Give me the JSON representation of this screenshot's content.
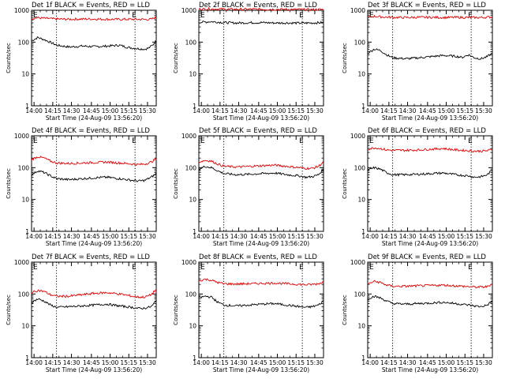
{
  "page": {
    "x_ticks": [
      "14:00",
      "14:15",
      "14:30",
      "14:45",
      "15:00",
      "15:15",
      "15:30"
    ],
    "y_ticks": [
      "1",
      "10",
      "100",
      "1000"
    ],
    "ylabel": "Counts/sec",
    "xlabel": "Start Time (24-Aug-09 13:56:20)",
    "marker_left": "E",
    "marker_right": "E",
    "colors": {
      "events": "#000000",
      "lld": "#e00000"
    }
  },
  "chart_data": [
    {
      "type": "line",
      "title": "Det 1f  BLACK = Events, RED = LLD",
      "ylim": [
        1,
        1000
      ],
      "yscale": "log",
      "xlim_minutes_from_start": [
        0,
        99
      ],
      "series": [
        {
          "name": "Events",
          "color": "#000000",
          "x": [
            0,
            5,
            10,
            20,
            30,
            40,
            50,
            60,
            70,
            75,
            80,
            85,
            90,
            93,
            96,
            99
          ],
          "y": [
            110,
            140,
            120,
            80,
            70,
            75,
            72,
            75,
            80,
            70,
            65,
            62,
            60,
            65,
            80,
            110
          ]
        },
        {
          "name": "LLD",
          "color": "#e00000",
          "x": [
            0,
            5,
            10,
            20,
            30,
            40,
            50,
            60,
            70,
            80,
            90,
            93,
            96,
            99
          ],
          "y": [
            550,
            580,
            560,
            530,
            520,
            530,
            530,
            520,
            520,
            520,
            520,
            510,
            540,
            600
          ]
        }
      ],
      "events": [
        {
          "tick": "14:00"
        }
      ]
    },
    {
      "type": "line",
      "title": "Det 2f  BLACK = Events, RED = LLD",
      "ylim": [
        1,
        1000
      ],
      "yscale": "log",
      "series": [
        {
          "name": "Events",
          "color": "#000000",
          "x": [
            0,
            10,
            20,
            30,
            40,
            50,
            60,
            70,
            80,
            90,
            99
          ],
          "y": [
            420,
            440,
            410,
            400,
            405,
            410,
            400,
            400,
            395,
            400,
            410
          ]
        },
        {
          "name": "LLD",
          "color": "#e00000",
          "x": [
            0,
            10,
            20,
            30,
            40,
            50,
            60,
            70,
            80,
            90,
            99
          ],
          "y": [
            1100,
            1100,
            1080,
            1070,
            1080,
            1070,
            1070,
            1060,
            1060,
            1050,
            1060
          ]
        }
      ]
    },
    {
      "type": "line",
      "title": "Det 3f  BLACK = Events, RED = LLD",
      "ylim": [
        1,
        1000
      ],
      "yscale": "log",
      "series": [
        {
          "name": "Events",
          "color": "#000000",
          "x": [
            0,
            5,
            10,
            15,
            20,
            30,
            40,
            50,
            60,
            70,
            75,
            80,
            85,
            90,
            95,
            99
          ],
          "y": [
            45,
            60,
            55,
            40,
            32,
            30,
            32,
            35,
            38,
            36,
            33,
            40,
            32,
            30,
            35,
            45
          ]
        },
        {
          "name": "LLD",
          "color": "#e00000",
          "x": [
            0,
            5,
            10,
            20,
            30,
            40,
            50,
            60,
            70,
            80,
            90,
            99
          ],
          "y": [
            600,
            650,
            620,
            600,
            590,
            600,
            600,
            590,
            600,
            590,
            590,
            620
          ]
        }
      ]
    },
    {
      "type": "line",
      "title": "Det 4f  BLACK = Events, RED = LLD",
      "ylim": [
        1,
        1000
      ],
      "yscale": "log",
      "series": [
        {
          "name": "Events",
          "color": "#000000",
          "x": [
            0,
            5,
            10,
            15,
            20,
            30,
            40,
            50,
            60,
            70,
            80,
            85,
            90,
            95,
            99
          ],
          "y": [
            60,
            80,
            70,
            55,
            45,
            42,
            45,
            48,
            50,
            45,
            40,
            38,
            40,
            50,
            65
          ]
        },
        {
          "name": "LLD",
          "color": "#e00000",
          "x": [
            0,
            5,
            10,
            15,
            20,
            30,
            40,
            50,
            60,
            70,
            80,
            85,
            90,
            95,
            99
          ],
          "y": [
            180,
            220,
            200,
            160,
            140,
            135,
            140,
            145,
            150,
            140,
            130,
            125,
            130,
            150,
            190
          ]
        }
      ]
    },
    {
      "type": "line",
      "title": "Det 5f  BLACK = Events, RED = LLD",
      "ylim": [
        1,
        1000
      ],
      "yscale": "log",
      "series": [
        {
          "name": "Events",
          "color": "#000000",
          "x": [
            0,
            5,
            10,
            15,
            20,
            30,
            40,
            50,
            60,
            70,
            80,
            85,
            90,
            95,
            99
          ],
          "y": [
            90,
            110,
            100,
            80,
            65,
            60,
            62,
            65,
            68,
            60,
            55,
            50,
            52,
            60,
            90
          ]
        },
        {
          "name": "LLD",
          "color": "#e00000",
          "x": [
            0,
            5,
            10,
            15,
            20,
            30,
            40,
            50,
            60,
            70,
            80,
            85,
            90,
            95,
            99
          ],
          "y": [
            150,
            170,
            160,
            130,
            110,
            105,
            110,
            115,
            120,
            110,
            100,
            95,
            95,
            110,
            150
          ]
        }
      ]
    },
    {
      "type": "line",
      "title": "Det 6f  BLACK = Events, RED = LLD",
      "ylim": [
        1,
        1000
      ],
      "yscale": "log",
      "series": [
        {
          "name": "Events",
          "color": "#000000",
          "x": [
            0,
            5,
            10,
            15,
            20,
            30,
            40,
            50,
            60,
            70,
            80,
            85,
            90,
            95,
            99
          ],
          "y": [
            80,
            100,
            90,
            70,
            60,
            60,
            62,
            65,
            68,
            60,
            55,
            50,
            52,
            60,
            85
          ]
        },
        {
          "name": "LLD",
          "color": "#e00000",
          "x": [
            0,
            5,
            10,
            15,
            20,
            30,
            40,
            50,
            60,
            70,
            80,
            85,
            90,
            95,
            99
          ],
          "y": [
            380,
            420,
            400,
            360,
            350,
            350,
            360,
            380,
            400,
            360,
            340,
            330,
            330,
            340,
            380
          ]
        }
      ]
    },
    {
      "type": "line",
      "title": "Det 7f  BLACK = Events, RED = LLD",
      "ylim": [
        1,
        1000
      ],
      "yscale": "log",
      "series": [
        {
          "name": "Events",
          "color": "#000000",
          "x": [
            0,
            5,
            10,
            15,
            20,
            30,
            40,
            50,
            60,
            70,
            80,
            85,
            90,
            95,
            99
          ],
          "y": [
            55,
            70,
            60,
            45,
            38,
            40,
            42,
            45,
            48,
            42,
            38,
            35,
            36,
            40,
            60
          ]
        },
        {
          "name": "LLD",
          "color": "#e00000",
          "x": [
            0,
            5,
            10,
            15,
            20,
            30,
            40,
            50,
            60,
            70,
            80,
            85,
            90,
            95,
            99
          ],
          "y": [
            110,
            130,
            120,
            95,
            85,
            85,
            95,
            105,
            110,
            100,
            85,
            80,
            80,
            95,
            140
          ]
        }
      ]
    },
    {
      "type": "line",
      "title": "Det 8f  BLACK = Events, RED = LLD",
      "ylim": [
        1,
        1000
      ],
      "yscale": "log",
      "series": [
        {
          "name": "Events",
          "color": "#000000",
          "x": [
            0,
            5,
            10,
            15,
            20,
            30,
            40,
            50,
            60,
            70,
            80,
            85,
            90,
            95,
            99
          ],
          "y": [
            75,
            85,
            80,
            55,
            45,
            42,
            45,
            48,
            50,
            45,
            40,
            38,
            40,
            45,
            60
          ]
        },
        {
          "name": "LLD",
          "color": "#e00000",
          "x": [
            0,
            5,
            10,
            15,
            20,
            30,
            40,
            50,
            60,
            70,
            80,
            85,
            90,
            95,
            99
          ],
          "y": [
            260,
            290,
            270,
            230,
            210,
            205,
            210,
            215,
            220,
            210,
            200,
            195,
            200,
            210,
            240
          ]
        }
      ]
    },
    {
      "type": "line",
      "title": "Det 9f  BLACK = Events, RED = LLD",
      "ylim": [
        1,
        1000
      ],
      "yscale": "log",
      "series": [
        {
          "name": "Events",
          "color": "#000000",
          "x": [
            0,
            5,
            10,
            15,
            20,
            30,
            40,
            50,
            60,
            70,
            80,
            85,
            90,
            95,
            99
          ],
          "y": [
            70,
            85,
            75,
            60,
            50,
            48,
            50,
            52,
            55,
            50,
            45,
            42,
            40,
            45,
            60
          ]
        },
        {
          "name": "LLD",
          "color": "#e00000",
          "x": [
            0,
            5,
            10,
            15,
            20,
            30,
            40,
            50,
            60,
            70,
            80,
            85,
            90,
            95,
            99
          ],
          "y": [
            200,
            250,
            230,
            190,
            175,
            175,
            180,
            185,
            190,
            180,
            170,
            165,
            165,
            170,
            210
          ]
        }
      ]
    }
  ]
}
